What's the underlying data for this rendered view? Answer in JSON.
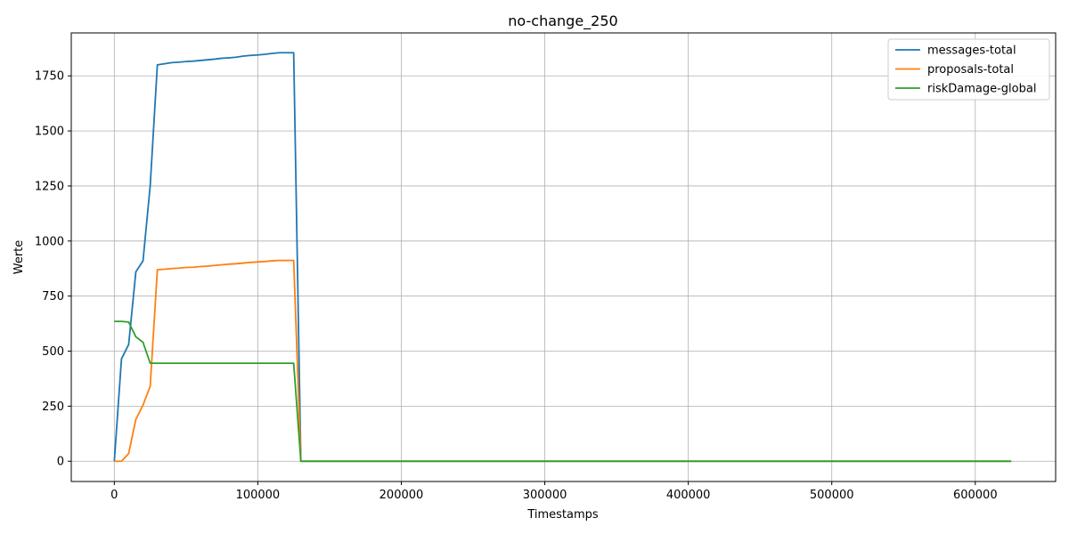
{
  "chart_data": {
    "type": "line",
    "title": "no-change_250",
    "xlabel": "Timestamps",
    "ylabel": "Werte",
    "xlim": [
      -30000,
      656000
    ],
    "ylim": [
      -92,
      1945
    ],
    "xticks": [
      0,
      100000,
      200000,
      300000,
      400000,
      500000,
      600000
    ],
    "xtick_labels": [
      "0",
      "100000",
      "200000",
      "300000",
      "400000",
      "500000",
      "600000"
    ],
    "yticks": [
      0,
      250,
      500,
      750,
      1000,
      1250,
      1500,
      1750
    ],
    "ytick_labels": [
      "0",
      "250",
      "500",
      "750",
      "1000",
      "1250",
      "1500",
      "1750"
    ],
    "grid": true,
    "legend_position": "top-right",
    "x": [
      0,
      5000,
      10000,
      15000,
      20000,
      25000,
      30000,
      35000,
      40000,
      45000,
      50000,
      55000,
      60000,
      65000,
      70000,
      75000,
      80000,
      85000,
      90000,
      95000,
      100000,
      105000,
      110000,
      115000,
      120000,
      125000,
      130000,
      625000
    ],
    "series": [
      {
        "name": "messages-total",
        "color": "#1f77b4",
        "values": [
          0,
          465,
          530,
          860,
          910,
          1250,
          1800,
          1805,
          1810,
          1812,
          1815,
          1817,
          1820,
          1823,
          1826,
          1830,
          1832,
          1835,
          1840,
          1843,
          1845,
          1848,
          1852,
          1855,
          1855,
          1855,
          0,
          0
        ]
      },
      {
        "name": "proposals-total",
        "color": "#ff7f0e",
        "values": [
          0,
          0,
          35,
          190,
          255,
          340,
          870,
          872,
          875,
          877,
          880,
          881,
          884,
          886,
          889,
          892,
          895,
          897,
          900,
          903,
          905,
          907,
          910,
          912,
          912,
          912,
          0,
          0
        ]
      },
      {
        "name": "riskDamage-global",
        "color": "#2ca02c",
        "values": [
          635,
          635,
          632,
          565,
          540,
          445,
          445,
          445,
          445,
          445,
          445,
          445,
          445,
          445,
          445,
          445,
          445,
          445,
          445,
          445,
          445,
          445,
          445,
          445,
          445,
          445,
          0,
          0
        ]
      }
    ]
  }
}
